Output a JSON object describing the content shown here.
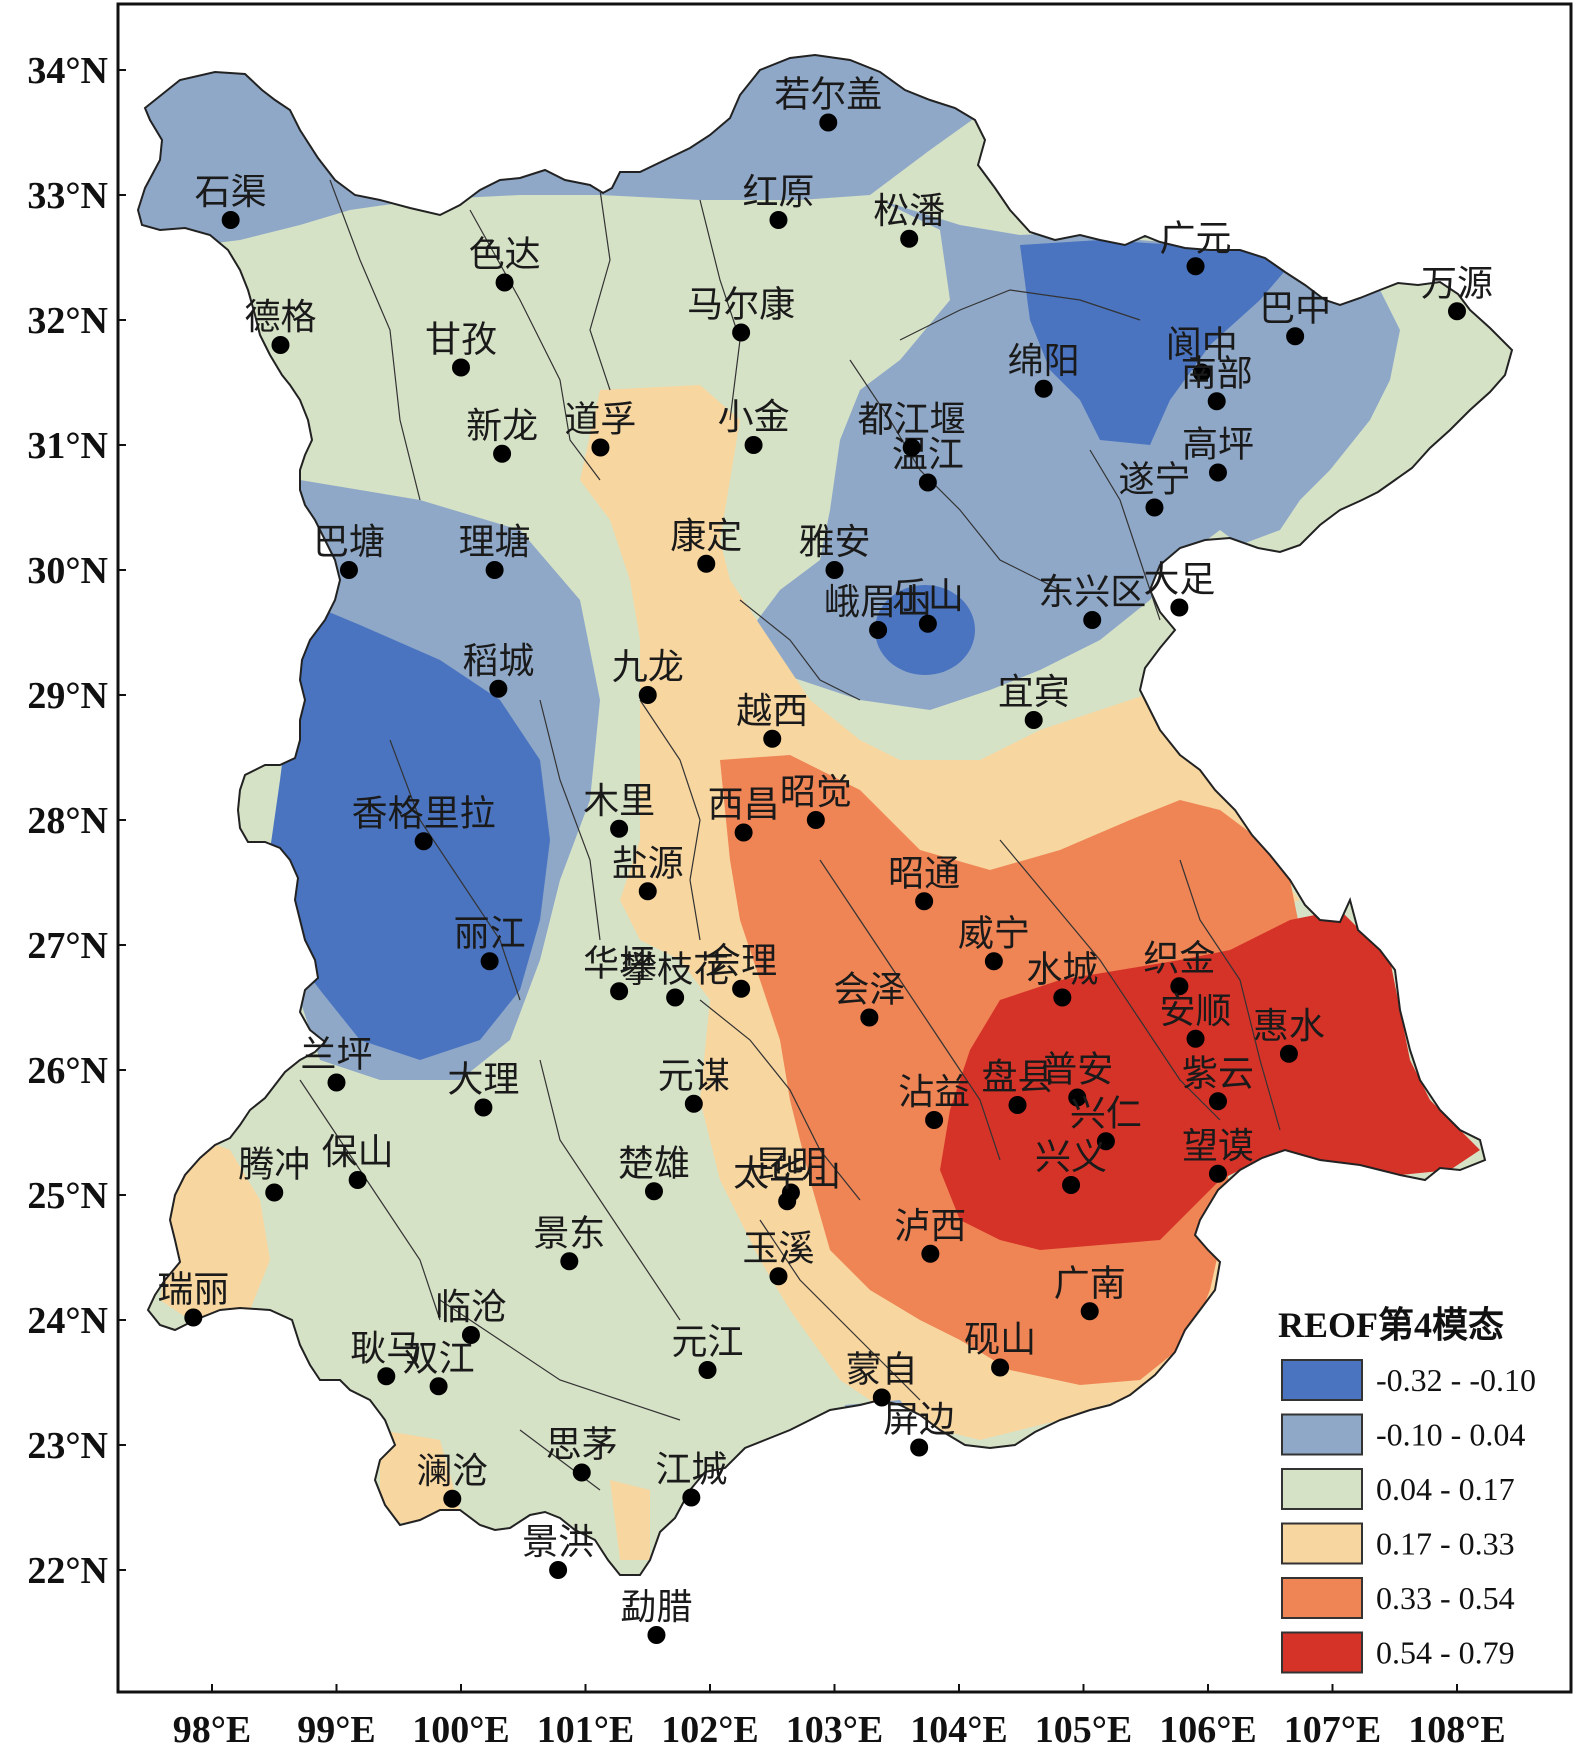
{
  "legend": {
    "title": "REOF第4模态",
    "classes": [
      {
        "label": "-0.32 - -0.10",
        "color": "#4a74c0"
      },
      {
        "label": "-0.10 - 0.04",
        "color": "#8fa8c8"
      },
      {
        "label": "0.04 - 0.17",
        "color": "#d6e2c6"
      },
      {
        "label": "0.17 - 0.33",
        "color": "#f7d6a0"
      },
      {
        "label": "0.33 - 0.54",
        "color": "#ef8455"
      },
      {
        "label": "0.54 - 0.79",
        "color": "#d53228"
      }
    ]
  },
  "axes": {
    "lat_labels": [
      "34°N",
      "33°N",
      "32°N",
      "31°N",
      "30°N",
      "29°N",
      "28°N",
      "27°N",
      "26°N",
      "25°N",
      "24°N",
      "23°N",
      "22°N"
    ],
    "lon_labels": [
      "98°E",
      "99°E",
      "100°E",
      "101°E",
      "102°E",
      "103°E",
      "104°E",
      "105°E",
      "106°E",
      "107°E",
      "108°E"
    ]
  },
  "stations": [
    {
      "name": "若尔盖",
      "lon": 102.95,
      "lat": 33.58
    },
    {
      "name": "石渠",
      "lon": 98.15,
      "lat": 32.8
    },
    {
      "name": "红原",
      "lon": 102.55,
      "lat": 32.8
    },
    {
      "name": "松潘",
      "lon": 103.6,
      "lat": 32.65
    },
    {
      "name": "色达",
      "lon": 100.35,
      "lat": 32.3
    },
    {
      "name": "广元",
      "lon": 105.9,
      "lat": 32.43
    },
    {
      "name": "万源",
      "lon": 108.0,
      "lat": 32.07
    },
    {
      "name": "德格",
      "lon": 98.55,
      "lat": 31.8
    },
    {
      "name": "马尔康",
      "lon": 102.25,
      "lat": 31.9
    },
    {
      "name": "巴中",
      "lon": 106.7,
      "lat": 31.87
    },
    {
      "name": "甘孜",
      "lon": 100.0,
      "lat": 31.62
    },
    {
      "name": "绵阳",
      "lon": 104.68,
      "lat": 31.45
    },
    {
      "name": "阆中",
      "lon": 105.95,
      "lat": 31.58
    },
    {
      "name": "南部",
      "lon": 106.07,
      "lat": 31.35
    },
    {
      "name": "新龙",
      "lon": 100.33,
      "lat": 30.93
    },
    {
      "name": "道孚",
      "lon": 101.12,
      "lat": 30.98
    },
    {
      "name": "小金",
      "lon": 102.35,
      "lat": 31.0
    },
    {
      "name": "温江",
      "lon": 103.75,
      "lat": 30.7
    },
    {
      "name": "都江堰",
      "lon": 103.62,
      "lat": 30.98
    },
    {
      "name": "遂宁",
      "lon": 105.57,
      "lat": 30.5
    },
    {
      "name": "高坪",
      "lon": 106.08,
      "lat": 30.78
    },
    {
      "name": "巴塘",
      "lon": 99.1,
      "lat": 30.0
    },
    {
      "name": "理塘",
      "lon": 100.27,
      "lat": 30.0
    },
    {
      "name": "康定",
      "lon": 101.97,
      "lat": 30.05
    },
    {
      "name": "雅安",
      "lon": 103.0,
      "lat": 30.0
    },
    {
      "name": "东兴区",
      "lon": 105.07,
      "lat": 29.6
    },
    {
      "name": "峨眉山",
      "lon": 103.35,
      "lat": 29.52
    },
    {
      "name": "乐山",
      "lon": 103.75,
      "lat": 29.57
    },
    {
      "name": "大足",
      "lon": 105.77,
      "lat": 29.7
    },
    {
      "name": "稻城",
      "lon": 100.3,
      "lat": 29.05
    },
    {
      "name": "九龙",
      "lon": 101.5,
      "lat": 29.0
    },
    {
      "name": "宜宾",
      "lon": 104.6,
      "lat": 28.8
    },
    {
      "name": "越西",
      "lon": 102.5,
      "lat": 28.65
    },
    {
      "name": "木里",
      "lon": 101.27,
      "lat": 27.93
    },
    {
      "name": "西昌",
      "lon": 102.27,
      "lat": 27.9
    },
    {
      "name": "昭觉",
      "lon": 102.85,
      "lat": 28.0
    },
    {
      "name": "香格里拉",
      "lon": 99.7,
      "lat": 27.83
    },
    {
      "name": "盐源",
      "lon": 101.5,
      "lat": 27.43
    },
    {
      "name": "昭通",
      "lon": 103.72,
      "lat": 27.35
    },
    {
      "name": "丽江",
      "lon": 100.23,
      "lat": 26.87
    },
    {
      "name": "威宁",
      "lon": 104.28,
      "lat": 26.87
    },
    {
      "name": "华坪",
      "lon": 101.27,
      "lat": 26.63
    },
    {
      "name": "会理",
      "lon": 102.25,
      "lat": 26.65
    },
    {
      "name": "攀枝花",
      "lon": 101.72,
      "lat": 26.58
    },
    {
      "name": "会泽",
      "lon": 103.28,
      "lat": 26.42
    },
    {
      "name": "水城",
      "lon": 104.83,
      "lat": 26.58
    },
    {
      "name": "织金",
      "lon": 105.77,
      "lat": 26.67
    },
    {
      "name": "安顺",
      "lon": 105.9,
      "lat": 26.25
    },
    {
      "name": "惠水",
      "lon": 106.65,
      "lat": 26.13
    },
    {
      "name": "兰坪",
      "lon": 99.0,
      "lat": 25.9
    },
    {
      "name": "大理",
      "lon": 100.18,
      "lat": 25.7
    },
    {
      "name": "元谋",
      "lon": 101.87,
      "lat": 25.73
    },
    {
      "name": "沾益",
      "lon": 103.8,
      "lat": 25.6
    },
    {
      "name": "盘县",
      "lon": 104.47,
      "lat": 25.72
    },
    {
      "name": "普安",
      "lon": 104.95,
      "lat": 25.78
    },
    {
      "name": "兴仁",
      "lon": 105.18,
      "lat": 25.43
    },
    {
      "name": "紫云",
      "lon": 106.08,
      "lat": 25.75
    },
    {
      "name": "昆明",
      "lon": 102.65,
      "lat": 25.02
    },
    {
      "name": "兴义",
      "lon": 104.9,
      "lat": 25.08
    },
    {
      "name": "望谟",
      "lon": 106.08,
      "lat": 25.17
    },
    {
      "name": "腾冲",
      "lon": 98.5,
      "lat": 25.02
    },
    {
      "name": "保山",
      "lon": 99.17,
      "lat": 25.12
    },
    {
      "name": "楚雄",
      "lon": 101.55,
      "lat": 25.03
    },
    {
      "name": "太华山",
      "lon": 102.62,
      "lat": 24.95
    },
    {
      "name": "景东",
      "lon": 100.87,
      "lat": 24.47
    },
    {
      "name": "玉溪",
      "lon": 102.55,
      "lat": 24.35
    },
    {
      "name": "泸西",
      "lon": 103.77,
      "lat": 24.53
    },
    {
      "name": "广南",
      "lon": 105.05,
      "lat": 24.07
    },
    {
      "name": "瑞丽",
      "lon": 97.85,
      "lat": 24.02
    },
    {
      "name": "临沧",
      "lon": 100.08,
      "lat": 23.88
    },
    {
      "name": "砚山",
      "lon": 104.33,
      "lat": 23.62
    },
    {
      "name": "耿马",
      "lon": 99.4,
      "lat": 23.55
    },
    {
      "name": "双江",
      "lon": 99.82,
      "lat": 23.47
    },
    {
      "name": "元江",
      "lon": 101.98,
      "lat": 23.6
    },
    {
      "name": "蒙自",
      "lon": 103.38,
      "lat": 23.38
    },
    {
      "name": "屏边",
      "lon": 103.68,
      "lat": 22.98
    },
    {
      "name": "思茅",
      "lon": 100.97,
      "lat": 22.78
    },
    {
      "name": "澜沧",
      "lon": 99.93,
      "lat": 22.57
    },
    {
      "name": "江城",
      "lon": 101.85,
      "lat": 22.58
    },
    {
      "name": "景洪",
      "lon": 100.78,
      "lat": 22.0
    },
    {
      "name": "勐腊",
      "lon": 101.57,
      "lat": 21.48
    }
  ]
}
